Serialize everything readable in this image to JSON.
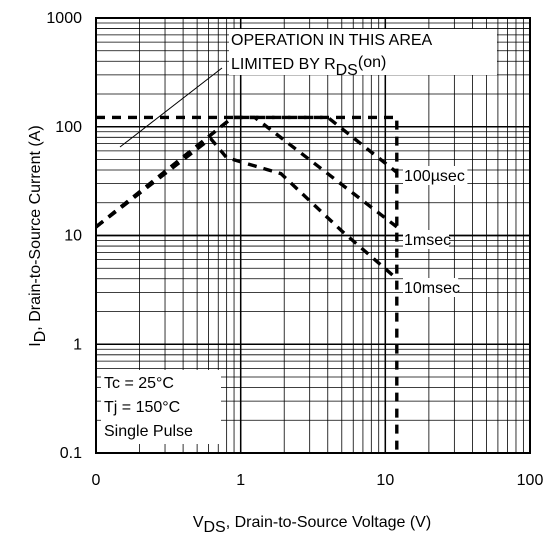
{
  "chart_data": {
    "type": "line",
    "title": "",
    "xlabel": {
      "main": "V",
      "sub": "DS",
      "rest": ", Drain-to-Source Voltage (V)"
    },
    "ylabel": {
      "main": "I",
      "sub": "D",
      "rest": ",  Drain-to-Source Current (A)"
    },
    "x_scale": "log",
    "y_scale": "log",
    "xlim": [
      0.1,
      100
    ],
    "ylim": [
      0.1,
      1000
    ],
    "x_ticks": [
      {
        "value": 0.1,
        "label": "0"
      },
      {
        "value": 1,
        "label": "1"
      },
      {
        "value": 10,
        "label": "10"
      },
      {
        "value": 100,
        "label": "100"
      }
    ],
    "y_ticks": [
      {
        "value": 0.1,
        "label": "0.1"
      },
      {
        "value": 1,
        "label": "1"
      },
      {
        "value": 10,
        "label": "10"
      },
      {
        "value": 100,
        "label": "100"
      },
      {
        "value": 1000,
        "label": "1000"
      }
    ],
    "grid": true,
    "series": [
      {
        "name": "100µsec",
        "points": [
          [
            0.1,
            12
          ],
          [
            0.88,
            122
          ],
          [
            1.25,
            122
          ],
          [
            4,
            122
          ],
          [
            12,
            38
          ]
        ]
      },
      {
        "name": "1msec",
        "points": [
          [
            0.1,
            12
          ],
          [
            0.88,
            122
          ],
          [
            1.25,
            122
          ],
          [
            12,
            12
          ]
        ]
      },
      {
        "name": "10msec",
        "points": [
          [
            0.1,
            12
          ],
          [
            0.62,
            78
          ],
          [
            0.8,
            52
          ],
          [
            1.9,
            37
          ],
          [
            5,
            11
          ],
          [
            12,
            4
          ]
        ]
      },
      {
        "name": "",
        "points": [
          [
            0.1,
            122
          ],
          [
            12,
            122
          ],
          [
            12,
            0.1
          ]
        ]
      }
    ],
    "series_labels": [
      "100µsec",
      "1msec",
      "10msec"
    ],
    "annotations": {
      "region_line1": "OPERATION IN THIS AREA",
      "region_line2_main": "LIMITED BY R",
      "region_line2_sub": "DS",
      "region_line2_rest": "(on)",
      "conditions": [
        "Tc = 25°C",
        "Tj = 150°C",
        "Single Pulse"
      ]
    }
  }
}
